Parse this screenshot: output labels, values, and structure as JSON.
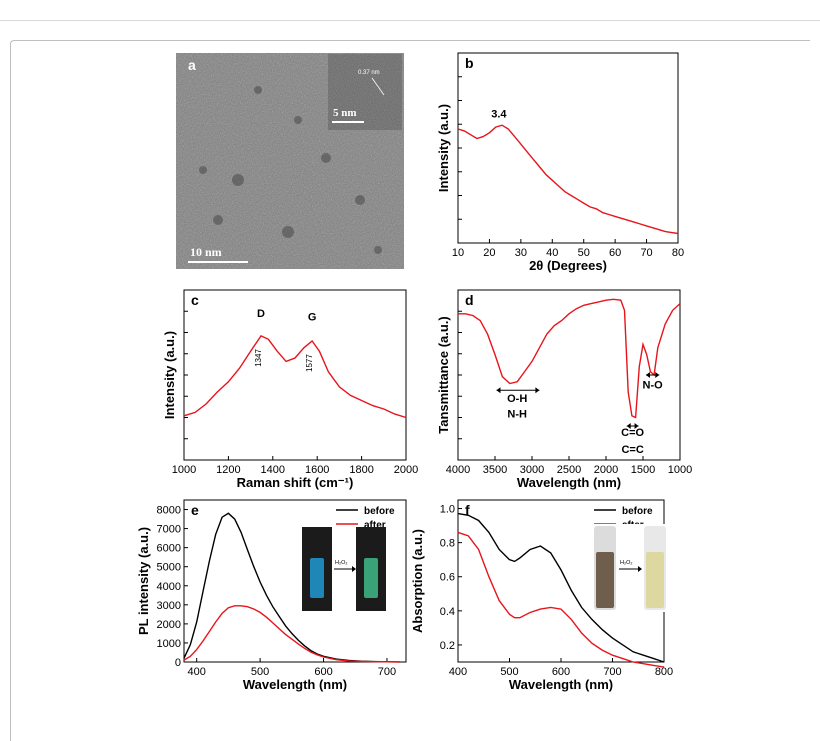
{
  "panel_letters": [
    "a",
    "b",
    "c",
    "d",
    "e",
    "f"
  ],
  "tem": {
    "scale_main": "10 nm",
    "scale_inset": "5 nm",
    "lattice_label": "0.37 nm"
  },
  "chart_data": [
    {
      "panel": "b",
      "type": "line",
      "title": "",
      "xlabel": "2θ (Degrees)",
      "ylabel": "Intensity (a.u.)",
      "xlim": [
        10,
        80
      ],
      "ylim": [
        0,
        1
      ],
      "xticks": [
        10,
        20,
        30,
        40,
        50,
        60,
        70,
        80
      ],
      "show_ytick_labels": false,
      "color": "#e8141c",
      "x": [
        10,
        12,
        14,
        16,
        18,
        20,
        22,
        24,
        26,
        28,
        30,
        32,
        34,
        36,
        38,
        40,
        42,
        44,
        46,
        48,
        50,
        52,
        54,
        56,
        58,
        60,
        62,
        64,
        66,
        68,
        70,
        72,
        74,
        76,
        78,
        80
      ],
      "values": [
        0.6,
        0.59,
        0.57,
        0.55,
        0.56,
        0.58,
        0.61,
        0.62,
        0.6,
        0.56,
        0.52,
        0.48,
        0.44,
        0.4,
        0.36,
        0.33,
        0.3,
        0.27,
        0.25,
        0.23,
        0.21,
        0.19,
        0.18,
        0.16,
        0.15,
        0.14,
        0.13,
        0.12,
        0.11,
        0.1,
        0.09,
        0.08,
        0.07,
        0.06,
        0.055,
        0.05
      ],
      "annotations": [
        {
          "text": "3.4",
          "x": 23,
          "y": 0.66
        }
      ]
    },
    {
      "panel": "c",
      "type": "line",
      "title": "",
      "xlabel": "Raman shift (cm⁻¹)",
      "ylabel": "Intensity (a.u.)",
      "xlim": [
        1000,
        2000
      ],
      "ylim": [
        0,
        1
      ],
      "xticks": [
        1000,
        1200,
        1400,
        1600,
        1800,
        2000
      ],
      "show_ytick_labels": false,
      "color": "#e8141c",
      "x": [
        1000,
        1050,
        1100,
        1150,
        1200,
        1250,
        1300,
        1347,
        1380,
        1420,
        1460,
        1500,
        1540,
        1577,
        1610,
        1650,
        1700,
        1750,
        1800,
        1850,
        1900,
        1950,
        2000
      ],
      "values": [
        0.26,
        0.28,
        0.33,
        0.4,
        0.46,
        0.54,
        0.64,
        0.73,
        0.71,
        0.64,
        0.58,
        0.6,
        0.66,
        0.7,
        0.64,
        0.52,
        0.43,
        0.38,
        0.35,
        0.32,
        0.3,
        0.27,
        0.25
      ],
      "annotations": [
        {
          "text": "D",
          "x": 1347,
          "y": 0.84
        },
        {
          "text": "G",
          "x": 1577,
          "y": 0.82
        },
        {
          "text": "1347",
          "x": 1347,
          "y": 0.6
        },
        {
          "text": "1577",
          "x": 1577,
          "y": 0.57
        }
      ]
    },
    {
      "panel": "d",
      "type": "line",
      "title": "",
      "xlabel": "Wavelength (nm)",
      "ylabel": "Tansmittance (a.u.)",
      "xlim": [
        4000,
        1000
      ],
      "ylim": [
        0,
        1
      ],
      "xticks": [
        4000,
        3500,
        3000,
        2500,
        2000,
        1500,
        1000
      ],
      "show_ytick_labels": false,
      "color": "#e8141c",
      "x": [
        4000,
        3900,
        3800,
        3700,
        3600,
        3500,
        3400,
        3300,
        3200,
        3100,
        3000,
        2900,
        2800,
        2700,
        2600,
        2500,
        2400,
        2300,
        2200,
        2100,
        2000,
        1900,
        1800,
        1750,
        1700,
        1650,
        1600,
        1550,
        1500,
        1450,
        1400,
        1350,
        1300,
        1200,
        1100,
        1000
      ],
      "values": [
        0.86,
        0.86,
        0.85,
        0.82,
        0.74,
        0.62,
        0.49,
        0.45,
        0.46,
        0.52,
        0.58,
        0.66,
        0.74,
        0.79,
        0.82,
        0.86,
        0.89,
        0.91,
        0.92,
        0.93,
        0.94,
        0.945,
        0.94,
        0.88,
        0.4,
        0.26,
        0.25,
        0.55,
        0.68,
        0.62,
        0.52,
        0.5,
        0.66,
        0.8,
        0.88,
        0.92
      ],
      "annotations": [
        {
          "text": "O-H",
          "x": 3200,
          "y": 0.34
        },
        {
          "text": "N-H",
          "x": 3200,
          "y": 0.25
        },
        {
          "text": "C=O",
          "x": 1640,
          "y": 0.14
        },
        {
          "text": "C=C",
          "x": 1640,
          "y": 0.04
        },
        {
          "text": "N-O",
          "x": 1370,
          "y": 0.42
        }
      ]
    },
    {
      "panel": "e",
      "type": "line",
      "title": "",
      "xlabel": "Wavelength (nm)",
      "ylabel": "PL intensity (a.u.)",
      "xlim": [
        380,
        730
      ],
      "ylim": [
        0,
        8500
      ],
      "xticks": [
        400,
        500,
        600,
        700
      ],
      "yticks": [
        0,
        1000,
        2000,
        3000,
        4000,
        5000,
        6000,
        7000,
        8000
      ],
      "legend": [
        "before",
        "after"
      ],
      "legend_position": "top-right",
      "series": [
        {
          "name": "before",
          "color": "#000000",
          "x": [
            380,
            390,
            400,
            410,
            420,
            430,
            440,
            450,
            460,
            470,
            480,
            490,
            500,
            510,
            520,
            530,
            540,
            550,
            560,
            570,
            580,
            590,
            600,
            620,
            640,
            660,
            680,
            700,
            720
          ],
          "values": [
            200,
            900,
            2100,
            3700,
            5300,
            6700,
            7600,
            7800,
            7500,
            6800,
            5900,
            5000,
            4200,
            3500,
            2900,
            2400,
            1900,
            1500,
            1150,
            850,
            600,
            420,
            300,
            150,
            80,
            40,
            20,
            10,
            5
          ]
        },
        {
          "name": "after",
          "color": "#e8141c",
          "x": [
            380,
            390,
            400,
            410,
            420,
            430,
            440,
            450,
            460,
            470,
            480,
            490,
            500,
            510,
            520,
            530,
            540,
            550,
            560,
            570,
            580,
            590,
            600,
            620,
            640,
            660,
            680,
            700,
            720
          ],
          "values": [
            100,
            300,
            650,
            1100,
            1600,
            2100,
            2550,
            2850,
            2950,
            2950,
            2900,
            2780,
            2600,
            2350,
            2050,
            1750,
            1450,
            1200,
            950,
            720,
            520,
            380,
            260,
            120,
            60,
            30,
            15,
            8,
            4
          ]
        }
      ],
      "inset": {
        "reagent": "H₂O₂",
        "colors": [
          "#1f86b8",
          "#3aa277"
        ]
      }
    },
    {
      "panel": "f",
      "type": "line",
      "title": "",
      "xlabel": "Wavelength (nm)",
      "ylabel": "Absorption (a.u.)",
      "xlim": [
        400,
        800
      ],
      "ylim": [
        0.1,
        1.05
      ],
      "xticks": [
        400,
        500,
        600,
        700,
        800
      ],
      "yticks": [
        0.2,
        0.4,
        0.6,
        0.8,
        1.0
      ],
      "legend": [
        "before",
        "after"
      ],
      "legend_position": "top-right",
      "series": [
        {
          "name": "before",
          "color": "#000000",
          "x": [
            400,
            420,
            440,
            460,
            480,
            500,
            510,
            520,
            540,
            560,
            580,
            600,
            620,
            640,
            660,
            680,
            700,
            720,
            740,
            760,
            780,
            800
          ],
          "values": [
            0.97,
            0.96,
            0.93,
            0.86,
            0.76,
            0.7,
            0.69,
            0.71,
            0.76,
            0.78,
            0.74,
            0.64,
            0.52,
            0.42,
            0.35,
            0.29,
            0.24,
            0.2,
            0.16,
            0.14,
            0.12,
            0.1
          ]
        },
        {
          "name": "after",
          "color": "#e8141c",
          "x": [
            400,
            420,
            440,
            460,
            480,
            500,
            510,
            520,
            540,
            560,
            580,
            600,
            620,
            640,
            660,
            680,
            700,
            720,
            740,
            760,
            780,
            800
          ],
          "values": [
            0.86,
            0.84,
            0.76,
            0.6,
            0.46,
            0.38,
            0.36,
            0.36,
            0.39,
            0.41,
            0.42,
            0.41,
            0.35,
            0.27,
            0.21,
            0.17,
            0.14,
            0.12,
            0.1,
            0.09,
            0.08,
            0.07
          ]
        }
      ],
      "inset": {
        "reagent": "H₂O₂",
        "colors": [
          "#6f5e4c",
          "#dcd8a0"
        ]
      }
    }
  ]
}
